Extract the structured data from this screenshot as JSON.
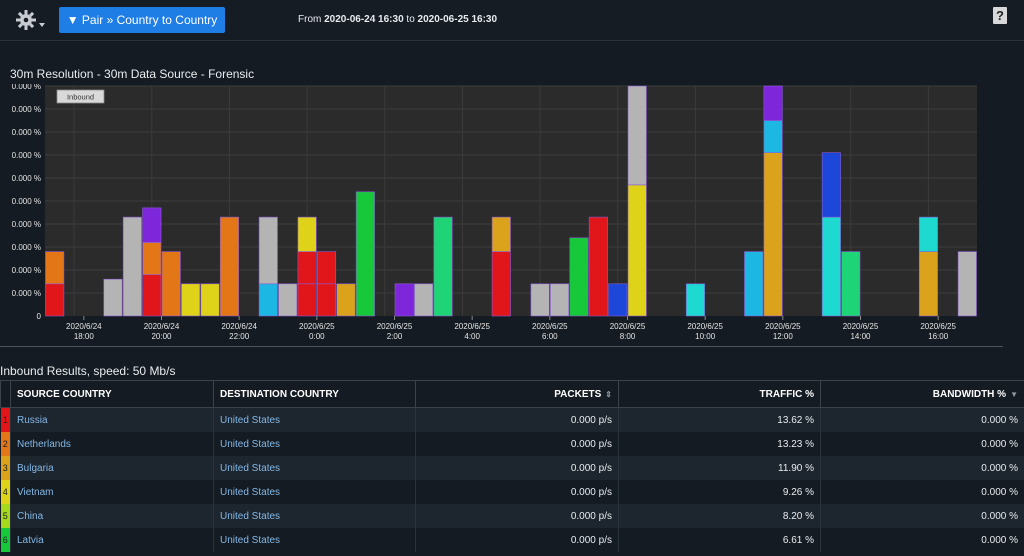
{
  "toolbar": {
    "pair_label": "▼ Pair » Country to Country",
    "from_label": "From",
    "from_date": "2020-06-24 16:30",
    "to_label": "to",
    "to_date": "2020-06-25 16:30",
    "help_label": "?"
  },
  "chart_title": "30m Resolution - 30m Data Source - Forensic",
  "chart_data": {
    "type": "bar",
    "stacked": true,
    "legend_label": "Inbound",
    "ytick_labels": [
      "0",
      "0.000 %",
      "0.000 %",
      "0.000 %",
      "0.000 %",
      "0.000 %",
      "0.000 %",
      "0.000 %",
      "0.000 %",
      "0.000 %",
      "0.000 %"
    ],
    "ylim": [
      0,
      10
    ],
    "xtick_labels": [
      {
        "at": 1.5,
        "date": "2020/6/24",
        "time": "18:00"
      },
      {
        "at": 5.5,
        "date": "2020/6/24",
        "time": "20:00"
      },
      {
        "at": 9.5,
        "date": "2020/6/24",
        "time": "22:00"
      },
      {
        "at": 13.5,
        "date": "2020/6/25",
        "time": "0:00"
      },
      {
        "at": 17.5,
        "date": "2020/6/25",
        "time": "2:00"
      },
      {
        "at": 21.5,
        "date": "2020/6/25",
        "time": "4:00"
      },
      {
        "at": 25.5,
        "date": "2020/6/25",
        "time": "6:00"
      },
      {
        "at": 29.5,
        "date": "2020/6/25",
        "time": "8:00"
      },
      {
        "at": 33.5,
        "date": "2020/6/25",
        "time": "10:00"
      },
      {
        "at": 37.5,
        "date": "2020/6/25",
        "time": "12:00"
      },
      {
        "at": 41.5,
        "date": "2020/6/25",
        "time": "14:00"
      },
      {
        "at": 45.5,
        "date": "2020/6/25",
        "time": "16:00"
      }
    ],
    "colors": {
      "red": "#e0161b",
      "orange": "#e37718",
      "amber": "#dba31b",
      "yellow": "#dfd31a",
      "green": "#17c83a",
      "green2": "#1fd476",
      "teal": "#1dd9d0",
      "cyan": "#1db7e3",
      "blue": "#1d47d9",
      "purple": "#7e26d9",
      "gray": "#b4b4b4"
    },
    "bars": [
      [
        [
          "red",
          1.4
        ],
        [
          "orange",
          1.4
        ]
      ],
      [],
      [],
      [
        [
          "gray",
          1.6
        ]
      ],
      [
        [
          "gray",
          4.3
        ]
      ],
      [
        [
          "red",
          1.8
        ],
        [
          "orange",
          1.4
        ],
        [
          "purple",
          1.5
        ]
      ],
      [
        [
          "orange",
          2.8
        ]
      ],
      [
        [
          "yellow",
          1.4
        ]
      ],
      [
        [
          "yellow",
          1.4
        ]
      ],
      [
        [
          "orange",
          4.3
        ]
      ],
      [],
      [
        [
          "cyan",
          1.4
        ],
        [
          "gray",
          2.9
        ]
      ],
      [
        [
          "gray",
          1.4
        ]
      ],
      [
        [
          "red",
          1.4
        ],
        [
          "red",
          1.4
        ],
        [
          "yellow",
          1.5
        ]
      ],
      [
        [
          "red",
          1.4
        ],
        [
          "red",
          1.4
        ]
      ],
      [
        [
          "amber",
          1.4
        ]
      ],
      [
        [
          "green",
          5.4
        ]
      ],
      [],
      [
        [
          "purple",
          1.4
        ]
      ],
      [
        [
          "gray",
          1.4
        ]
      ],
      [
        [
          "green2",
          4.3
        ]
      ],
      [],
      [],
      [
        [
          "red",
          2.8
        ],
        [
          "amber",
          1.5
        ]
      ],
      [],
      [
        [
          "gray",
          1.4
        ]
      ],
      [
        [
          "gray",
          1.4
        ]
      ],
      [
        [
          "green",
          3.4
        ]
      ],
      [
        [
          "red",
          4.3
        ]
      ],
      [
        [
          "blue",
          1.4
        ]
      ],
      [
        [
          "yellow",
          5.7
        ],
        [
          "gray",
          4.3
        ]
      ],
      [],
      [],
      [
        [
          "teal",
          1.4
        ]
      ],
      [],
      [],
      [
        [
          "cyan",
          2.8
        ]
      ],
      [
        [
          "amber",
          7.1
        ],
        [
          "cyan",
          1.4
        ],
        [
          "purple",
          1.5
        ]
      ],
      [],
      [],
      [
        [
          "teal",
          4.3
        ],
        [
          "blue",
          2.8
        ]
      ],
      [
        [
          "green2",
          2.8
        ]
      ],
      [],
      [],
      [],
      [
        [
          "amber",
          2.8
        ],
        [
          "teal",
          1.5
        ]
      ],
      [],
      [
        [
          "gray",
          2.8
        ]
      ]
    ]
  },
  "results": {
    "title": "Inbound Results, speed: 50 Mb/s",
    "columns": {
      "source": "SOURCE COUNTRY",
      "destination": "DESTINATION COUNTRY",
      "packets": "PACKETS",
      "traffic": "TRAFFIC %",
      "bandwidth": "BANDWIDTH %"
    },
    "rows": [
      {
        "rank": "1",
        "color": "#e0161b",
        "source": "Russia",
        "destination": "United States",
        "packets": "0.000 p/s",
        "traffic": "13.62 %",
        "bandwidth": "0.000 %"
      },
      {
        "rank": "2",
        "color": "#e37718",
        "source": "Netherlands",
        "destination": "United States",
        "packets": "0.000 p/s",
        "traffic": "13.23 %",
        "bandwidth": "0.000 %"
      },
      {
        "rank": "3",
        "color": "#dba31b",
        "source": "Bulgaria",
        "destination": "United States",
        "packets": "0.000 p/s",
        "traffic": "11.90 %",
        "bandwidth": "0.000 %"
      },
      {
        "rank": "4",
        "color": "#dfd31a",
        "source": "Vietnam",
        "destination": "United States",
        "packets": "0.000 p/s",
        "traffic": "9.26 %",
        "bandwidth": "0.000 %"
      },
      {
        "rank": "5",
        "color": "#a6d81c",
        "source": "China",
        "destination": "United States",
        "packets": "0.000 p/s",
        "traffic": "8.20 %",
        "bandwidth": "0.000 %"
      },
      {
        "rank": "6",
        "color": "#17c83a",
        "source": "Latvia",
        "destination": "United States",
        "packets": "0.000 p/s",
        "traffic": "6.61 %",
        "bandwidth": "0.000 %"
      }
    ]
  }
}
